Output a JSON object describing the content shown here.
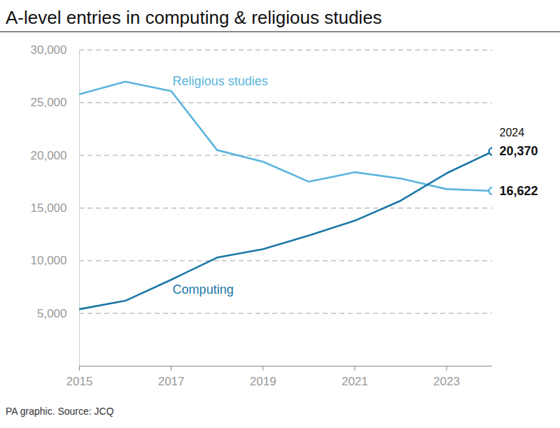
{
  "chart_data": {
    "type": "line",
    "title": "A-level entries in computing & religious studies",
    "caption": "PA graphic. Source: JCQ",
    "x": [
      2015,
      2016,
      2017,
      2018,
      2019,
      2020,
      2021,
      2022,
      2023,
      2024
    ],
    "series": [
      {
        "name": "Religious studies",
        "color": "#5bb5dd",
        "values": [
          25800,
          27000,
          26100,
          20500,
          19400,
          17500,
          18400,
          17800,
          16800,
          16622
        ],
        "value_labels": [
          null,
          null,
          null,
          null,
          null,
          null,
          null,
          null,
          null,
          "16,622"
        ]
      },
      {
        "name": "Computing",
        "color": "#1b77a8",
        "values": [
          5400,
          6200,
          8200,
          10300,
          11100,
          12400,
          13800,
          15700,
          18300,
          20370
        ],
        "value_labels": [
          null,
          null,
          null,
          null,
          null,
          null,
          null,
          null,
          null,
          "20,370"
        ]
      }
    ],
    "annotations": [
      {
        "text": "2024",
        "x": 2024
      }
    ],
    "xlim": [
      2015,
      2024
    ],
    "xticks": [
      2015,
      2017,
      2019,
      2021,
      2023
    ],
    "ylim": [
      0,
      30000
    ],
    "yticks": [
      {
        "value": 5000,
        "label": "5,000"
      },
      {
        "value": 10000,
        "label": "10,000"
      },
      {
        "value": 15000,
        "label": "15,000"
      },
      {
        "value": 20000,
        "label": "20,000"
      },
      {
        "value": 25000,
        "label": "25,000"
      },
      {
        "value": 30000,
        "label": "30,000"
      }
    ],
    "grid": true
  }
}
